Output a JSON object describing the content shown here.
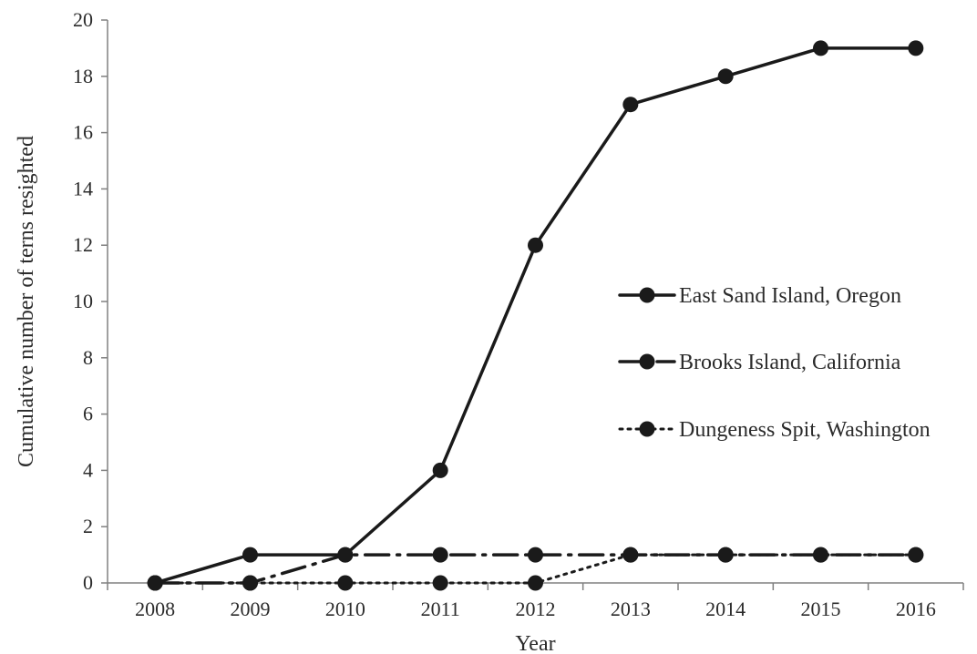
{
  "chart_data": {
    "type": "line",
    "title": "",
    "xlabel": "Year",
    "ylabel": "Cumulative number of terns resighted",
    "categories": [
      "2008",
      "2009",
      "2010",
      "2011",
      "2012",
      "2013",
      "2014",
      "2015",
      "2016"
    ],
    "ylim": [
      0,
      20
    ],
    "yticks": [
      0,
      2,
      4,
      6,
      8,
      10,
      12,
      14,
      16,
      18,
      20
    ],
    "grid": false,
    "legend_position": "right",
    "series": [
      {
        "name": "East Sand Island, Oregon",
        "values": [
          0,
          1,
          1,
          4,
          12,
          17,
          18,
          19,
          19
        ],
        "line_style": "solid",
        "marker": "circle",
        "color": "#1a1a1a"
      },
      {
        "name": "Brooks Island, California",
        "values": [
          0,
          0,
          1,
          1,
          1,
          1,
          1,
          1,
          1
        ],
        "line_style": "dash-dot",
        "marker": "circle",
        "color": "#1a1a1a"
      },
      {
        "name": "Dungeness Spit, Washington",
        "values": [
          0,
          0,
          0,
          0,
          0,
          1,
          1,
          1,
          1
        ],
        "line_style": "dotted",
        "marker": "circle",
        "color": "#1a1a1a"
      }
    ]
  }
}
